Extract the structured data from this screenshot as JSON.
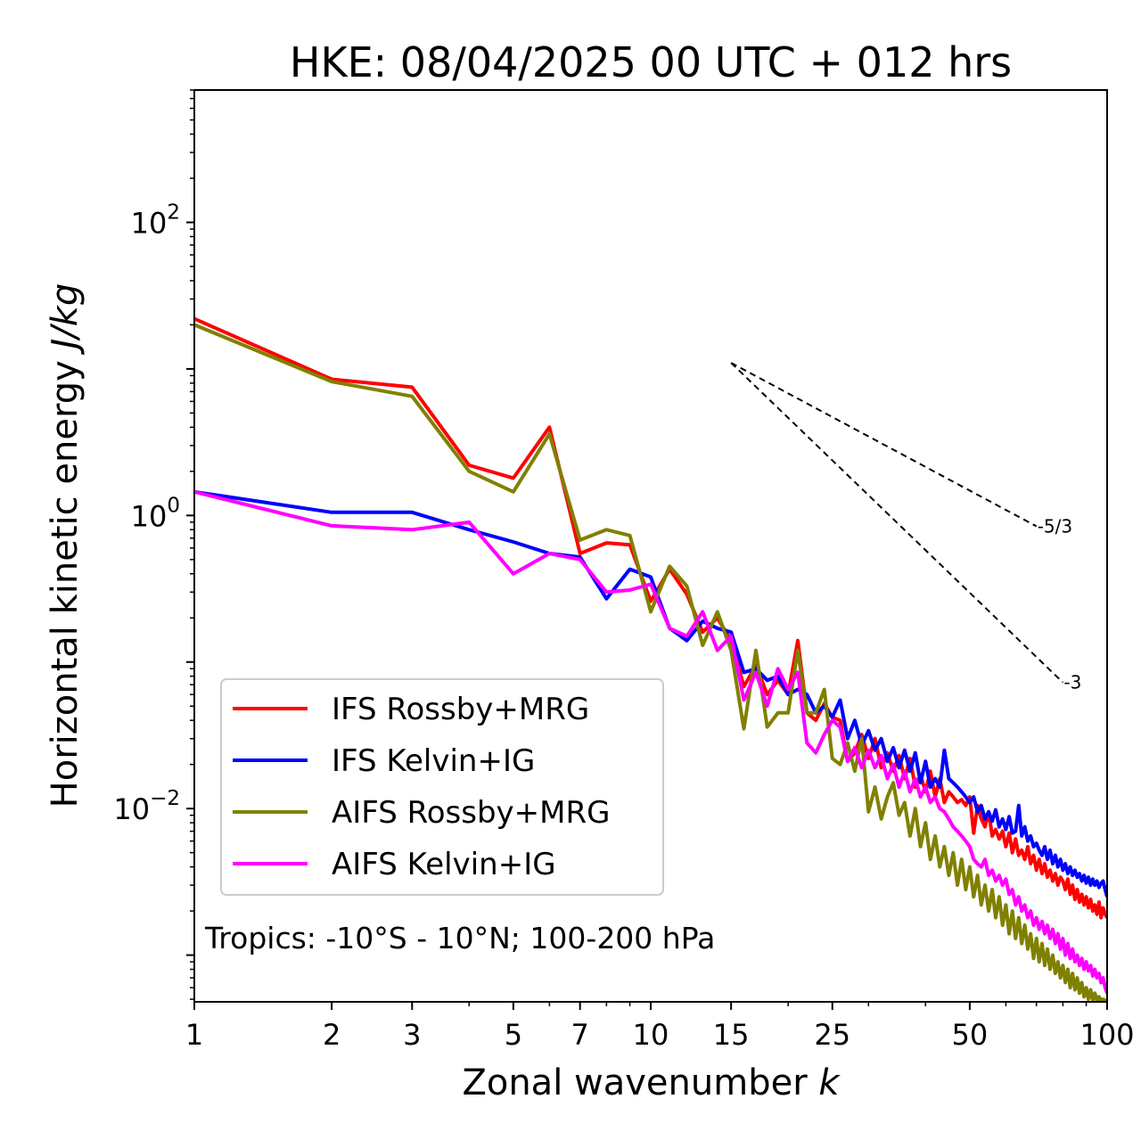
{
  "chart_data": {
    "type": "line",
    "title": "HKE: 08/04/2025 00 UTC + 012 hrs",
    "xlabel": "Zonal wavenumber",
    "xlabel_var": "k",
    "ylabel": "Horizontal kinetic energy",
    "ylabel_unit": "J/kg",
    "xscale": "log",
    "yscale": "log",
    "xlim": [
      1,
      100
    ],
    "ylim": [
      0.00048,
      800
    ],
    "xticks": [
      1,
      2,
      3,
      5,
      7,
      10,
      15,
      25,
      50,
      100
    ],
    "xtick_labels": [
      "1",
      "2",
      "3",
      "5",
      "7",
      "10",
      "15",
      "25",
      "50",
      "100"
    ],
    "yticks": [
      0.01,
      1,
      100
    ],
    "ytick_labels": [
      {
        "base": "10",
        "exp": "−2"
      },
      {
        "base": "10",
        "exp": "0"
      },
      {
        "base": "10",
        "exp": "2"
      }
    ],
    "annotation": "Tropics: -10°S - 10°N; 100-200 hPa",
    "reference_slopes": [
      {
        "label": "-5/3",
        "exponent": -1.6667,
        "x": [
          15,
          70
        ],
        "y0": 11
      },
      {
        "label": "-3",
        "exponent": -3,
        "x": [
          15,
          80
        ],
        "y0": 11
      }
    ],
    "legend_position": "lower-left",
    "series": [
      {
        "name": "IFS Rossby+MRG",
        "color": "#ff0000",
        "x": [
          1,
          2,
          3,
          4,
          5,
          6,
          7,
          8,
          9,
          10,
          11,
          12,
          13,
          14,
          15,
          16,
          17,
          18,
          19,
          20,
          21,
          22,
          23,
          24,
          25,
          26,
          27,
          28,
          29,
          30,
          31,
          32,
          33,
          34,
          35,
          36,
          37,
          38,
          39,
          40,
          41,
          42,
          43,
          44,
          45,
          46,
          47,
          48,
          49,
          50,
          51,
          52,
          53,
          54,
          55,
          56,
          57,
          58,
          59,
          60,
          61,
          62,
          63,
          64,
          65,
          66,
          67,
          68,
          69,
          70,
          71,
          72,
          73,
          74,
          75,
          76,
          77,
          78,
          79,
          80,
          81,
          82,
          83,
          84,
          85,
          86,
          87,
          88,
          89,
          90,
          91,
          92,
          93,
          94,
          95,
          96,
          97,
          98,
          99,
          100
        ],
        "y": [
          22,
          8.5,
          7.5,
          2.2,
          1.8,
          4,
          0.55,
          0.65,
          0.63,
          0.26,
          0.43,
          0.29,
          0.16,
          0.2,
          0.14,
          0.068,
          0.095,
          0.06,
          0.075,
          0.06,
          0.14,
          0.045,
          0.04,
          0.052,
          0.042,
          0.04,
          0.021,
          0.024,
          0.032,
          0.022,
          0.03,
          0.019,
          0.024,
          0.018,
          0.023,
          0.016,
          0.022,
          0.014,
          0.017,
          0.013,
          0.018,
          0.012,
          0.016,
          0.011,
          0.013,
          0.012,
          0.011,
          0.0115,
          0.0105,
          0.012,
          0.0068,
          0.0105,
          0.0085,
          0.0075,
          0.0095,
          0.0065,
          0.0072,
          0.0062,
          0.007,
          0.0055,
          0.0068,
          0.005,
          0.0062,
          0.0048,
          0.0052,
          0.0045,
          0.0055,
          0.0042,
          0.0048,
          0.0038,
          0.0045,
          0.0036,
          0.0042,
          0.0034,
          0.0038,
          0.0032,
          0.0036,
          0.003,
          0.0034,
          0.0032,
          0.0028,
          0.0033,
          0.0026,
          0.003,
          0.0024,
          0.0028,
          0.0023,
          0.0026,
          0.0022,
          0.0025,
          0.0021,
          0.0024,
          0.002,
          0.0022,
          0.0019,
          0.0023,
          0.0018,
          0.0021,
          0.0019,
          0.0018
        ]
      },
      {
        "name": "IFS Kelvin+IG",
        "color": "#0000ff",
        "x": [
          1,
          2,
          3,
          4,
          5,
          6,
          7,
          8,
          9,
          10,
          11,
          12,
          13,
          14,
          15,
          16,
          17,
          18,
          19,
          20,
          21,
          22,
          23,
          24,
          25,
          26,
          27,
          28,
          29,
          30,
          31,
          32,
          33,
          34,
          35,
          36,
          37,
          38,
          39,
          40,
          41,
          42,
          43,
          44,
          45,
          46,
          47,
          48,
          49,
          50,
          51,
          52,
          53,
          54,
          55,
          56,
          57,
          58,
          59,
          60,
          61,
          62,
          63,
          64,
          65,
          66,
          67,
          68,
          69,
          70,
          71,
          72,
          73,
          74,
          75,
          76,
          77,
          78,
          79,
          80,
          81,
          82,
          83,
          84,
          85,
          86,
          87,
          88,
          89,
          90,
          91,
          92,
          93,
          94,
          95,
          96,
          97,
          98,
          99,
          100
        ],
        "y": [
          1.45,
          1.05,
          1.05,
          0.8,
          0.66,
          0.55,
          0.52,
          0.27,
          0.43,
          0.38,
          0.17,
          0.14,
          0.19,
          0.17,
          0.16,
          0.085,
          0.09,
          0.075,
          0.08,
          0.06,
          0.065,
          0.06,
          0.045,
          0.05,
          0.042,
          0.055,
          0.03,
          0.04,
          0.027,
          0.034,
          0.025,
          0.03,
          0.021,
          0.026,
          0.019,
          0.025,
          0.018,
          0.024,
          0.015,
          0.021,
          0.014,
          0.016,
          0.014,
          0.025,
          0.016,
          0.015,
          0.014,
          0.013,
          0.012,
          0.011,
          0.012,
          0.0095,
          0.0105,
          0.0085,
          0.0095,
          0.0082,
          0.0098,
          0.0075,
          0.0085,
          0.0072,
          0.0088,
          0.0068,
          0.007,
          0.0105,
          0.0065,
          0.0075,
          0.006,
          0.0065,
          0.0055,
          0.0058,
          0.0052,
          0.0048,
          0.0055,
          0.0045,
          0.0052,
          0.0042,
          0.0048,
          0.004,
          0.0045,
          0.0038,
          0.0042,
          0.0036,
          0.004,
          0.0035,
          0.0038,
          0.0034,
          0.0036,
          0.0032,
          0.0035,
          0.0031,
          0.0034,
          0.003,
          0.0033,
          0.003,
          0.0032,
          0.0029,
          0.0031,
          0.0032,
          0.0028,
          0.0025
        ]
      },
      {
        "name": "AIFS Rossby+MRG",
        "color": "#808000",
        "x": [
          1,
          2,
          3,
          4,
          5,
          6,
          7,
          8,
          9,
          10,
          11,
          12,
          13,
          14,
          15,
          16,
          17,
          18,
          19,
          20,
          21,
          22,
          23,
          24,
          25,
          26,
          27,
          28,
          29,
          30,
          31,
          32,
          33,
          34,
          35,
          36,
          37,
          38,
          39,
          40,
          41,
          42,
          43,
          44,
          45,
          46,
          47,
          48,
          49,
          50,
          51,
          52,
          53,
          54,
          55,
          56,
          57,
          58,
          59,
          60,
          61,
          62,
          63,
          64,
          65,
          66,
          67,
          68,
          69,
          70,
          71,
          72,
          73,
          74,
          75,
          76,
          77,
          78,
          79,
          80,
          81,
          82,
          83,
          84,
          85,
          86,
          87,
          88,
          89,
          90,
          91,
          92,
          93,
          94,
          95,
          96,
          97,
          98,
          99,
          100
        ],
        "y": [
          20,
          8.2,
          6.5,
          2,
          1.45,
          3.6,
          0.68,
          0.8,
          0.73,
          0.22,
          0.45,
          0.33,
          0.13,
          0.22,
          0.12,
          0.035,
          0.12,
          0.036,
          0.045,
          0.045,
          0.12,
          0.045,
          0.045,
          0.065,
          0.022,
          0.02,
          0.028,
          0.018,
          0.03,
          0.0095,
          0.014,
          0.0085,
          0.012,
          0.015,
          0.009,
          0.011,
          0.0065,
          0.01,
          0.0055,
          0.008,
          0.0045,
          0.0065,
          0.004,
          0.0055,
          0.0035,
          0.005,
          0.003,
          0.0045,
          0.0028,
          0.004,
          0.0025,
          0.0035,
          0.0022,
          0.003,
          0.002,
          0.0028,
          0.0018,
          0.0025,
          0.0016,
          0.0022,
          0.0014,
          0.002,
          0.0013,
          0.0018,
          0.0012,
          0.0016,
          0.0011,
          0.0014,
          0.00095,
          0.0013,
          0.0009,
          0.0012,
          0.00085,
          0.0011,
          0.0008,
          0.001,
          0.00075,
          0.0009,
          0.0007,
          0.00085,
          0.00065,
          0.0008,
          0.0006,
          0.00075,
          0.00058,
          0.0007,
          0.00055,
          0.00065,
          0.00052,
          0.0006,
          0.0005,
          0.00058,
          0.00049,
          0.00055,
          0.00049,
          0.00052,
          0.00049,
          0.0005,
          0.00049,
          0.00049
        ]
      },
      {
        "name": "AIFS Kelvin+IG",
        "color": "#ff00ff",
        "x": [
          1,
          2,
          3,
          4,
          5,
          6,
          7,
          8,
          9,
          10,
          11,
          12,
          13,
          14,
          15,
          16,
          17,
          18,
          19,
          20,
          21,
          22,
          23,
          24,
          25,
          26,
          27,
          28,
          29,
          30,
          31,
          32,
          33,
          34,
          35,
          36,
          37,
          38,
          39,
          40,
          41,
          42,
          43,
          44,
          45,
          46,
          47,
          48,
          49,
          50,
          51,
          52,
          53,
          54,
          55,
          56,
          57,
          58,
          59,
          60,
          61,
          62,
          63,
          64,
          65,
          66,
          67,
          68,
          69,
          70,
          71,
          72,
          73,
          74,
          75,
          76,
          77,
          78,
          79,
          80,
          81,
          82,
          83,
          84,
          85,
          86,
          87,
          88,
          89,
          90,
          91,
          92,
          93,
          94,
          95,
          96,
          97,
          98,
          99,
          100
        ],
        "y": [
          1.45,
          0.85,
          0.8,
          0.9,
          0.4,
          0.55,
          0.5,
          0.3,
          0.31,
          0.34,
          0.17,
          0.15,
          0.22,
          0.12,
          0.15,
          0.055,
          0.085,
          0.05,
          0.09,
          0.065,
          0.085,
          0.028,
          0.024,
          0.032,
          0.04,
          0.036,
          0.021,
          0.026,
          0.019,
          0.025,
          0.019,
          0.023,
          0.016,
          0.02,
          0.014,
          0.018,
          0.013,
          0.016,
          0.012,
          0.014,
          0.011,
          0.012,
          0.01,
          0.0095,
          0.0085,
          0.0075,
          0.007,
          0.0065,
          0.006,
          0.0055,
          0.0045,
          0.0042,
          0.004,
          0.0045,
          0.0035,
          0.0038,
          0.0032,
          0.0035,
          0.003,
          0.0033,
          0.0026,
          0.0028,
          0.0022,
          0.0025,
          0.002,
          0.0022,
          0.0018,
          0.002,
          0.0016,
          0.0018,
          0.0015,
          0.0017,
          0.0014,
          0.0016,
          0.0013,
          0.0015,
          0.0012,
          0.0014,
          0.0011,
          0.0013,
          0.001,
          0.0012,
          0.00095,
          0.0011,
          0.0009,
          0.001,
          0.00085,
          0.00095,
          0.0008,
          0.0009,
          0.00078,
          0.00085,
          0.00072,
          0.0008,
          0.0007,
          0.00075,
          0.00065,
          0.0007,
          0.0006,
          0.00055
        ]
      }
    ]
  }
}
